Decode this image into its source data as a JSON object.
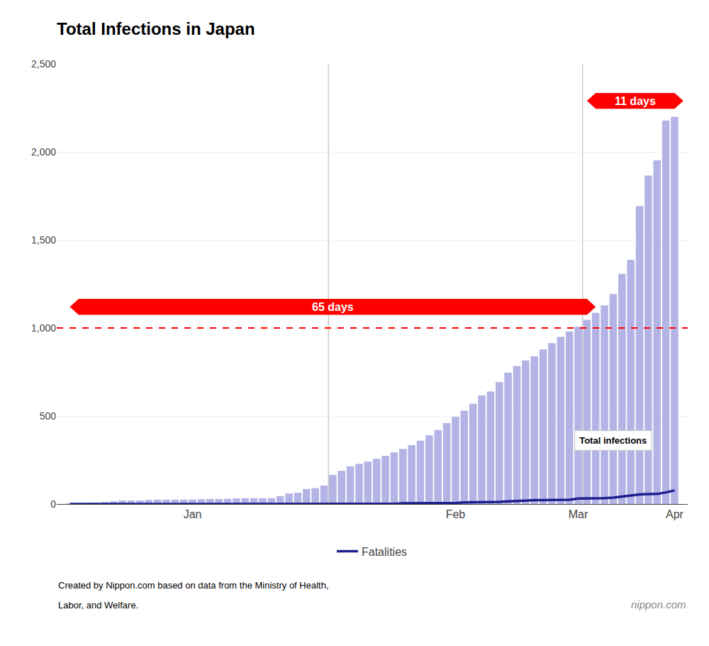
{
  "chart_data": {
    "type": "bar",
    "title": "Total Infections in Japan",
    "categories": [
      null,
      null,
      null,
      null,
      null,
      null,
      null,
      null,
      null,
      null,
      null,
      null,
      null,
      null,
      "Jan",
      null,
      null,
      null,
      null,
      null,
      null,
      null,
      null,
      null,
      null,
      null,
      null,
      null,
      null,
      null,
      null,
      null,
      null,
      null,
      null,
      null,
      null,
      null,
      null,
      null,
      null,
      null,
      null,
      null,
      "Feb",
      null,
      null,
      null,
      null,
      null,
      null,
      null,
      null,
      null,
      null,
      null,
      null,
      null,
      "Mar",
      null,
      null,
      null,
      null,
      null,
      null,
      null,
      null,
      null,
      null,
      "Apr"
    ],
    "series": [
      {
        "name": "Total infections",
        "type": "bar",
        "color": "#b3b3e6",
        "values": [
          3,
          4,
          6,
          7,
          11,
          15,
          20,
          20,
          20,
          23,
          25,
          25,
          25,
          25,
          26,
          28,
          29,
          29,
          30,
          32,
          33,
          33,
          33,
          33,
          45,
          60,
          64,
          85,
          90,
          105,
          165,
          189,
          214,
          228,
          241,
          257,
          274,
          293,
          313,
          335,
          360,
          390,
          420,
          460,
          495,
          530,
          570,
          617,
          639,
          693,
          746,
          783,
          816,
          839,
          878,
          914,
          950,
          980,
          1007,
          1046,
          1086,
          1128,
          1193,
          1307,
          1387,
          1693,
          1866,
          1953,
          2178,
          2200
        ]
      },
      {
        "name": "Fatalities",
        "type": "line",
        "color": "#1e1e8f",
        "values": [
          0,
          0,
          0,
          0,
          0,
          0,
          0,
          0,
          0,
          0,
          0,
          0,
          0,
          0,
          0,
          0,
          0,
          0,
          0,
          0,
          0,
          0,
          0,
          0,
          0,
          0,
          0,
          0,
          0,
          0,
          0,
          0,
          1,
          1,
          1,
          1,
          1,
          1,
          4,
          4,
          6,
          6,
          6,
          6,
          6,
          9,
          9,
          9,
          12,
          12,
          15,
          16,
          19,
          22,
          22,
          22,
          24,
          24,
          31,
          31,
          33,
          33,
          36,
          42,
          45,
          54,
          56,
          57,
          66,
          77
        ]
      }
    ],
    "threshold": 1000,
    "ylim": [
      0,
      2500
    ],
    "yticks": [
      0,
      500,
      {
        "value": 1000,
        "label": "1,000"
      },
      {
        "value": 1500,
        "label": "1,500"
      },
      {
        "value": 2000,
        "label": "2,000"
      },
      {
        "value": 2500,
        "label": "2,500"
      }
    ],
    "grid": true,
    "legend": "bottom",
    "annotations": [
      "65 days",
      "11 days",
      "Created by Nippon.com based on data from the Ministry of Health,",
      "Labor, and Welfare.",
      "nippon.com"
    ]
  }
}
